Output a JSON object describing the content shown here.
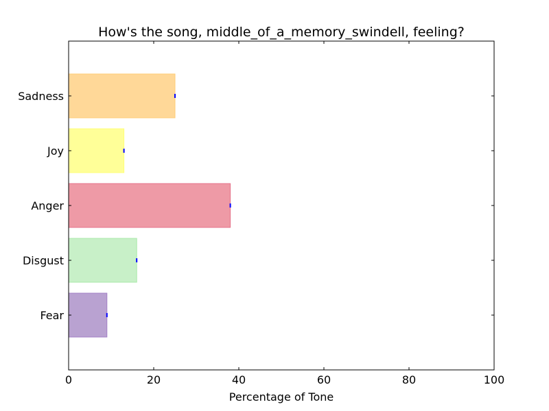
{
  "chart_data": {
    "type": "bar",
    "orientation": "horizontal",
    "title": "How's the song, middle_of_a_memory_swindell, feeling?",
    "xlabel": "Percentage of Tone",
    "ylabel": "",
    "xlim": [
      0,
      100
    ],
    "xticks": [
      0,
      20,
      40,
      60,
      80,
      100
    ],
    "grid": false,
    "legend": "none",
    "categories": [
      "Sadness",
      "Joy",
      "Anger",
      "Disgust",
      "Fear"
    ],
    "values": [
      25,
      13,
      38,
      16,
      9
    ],
    "bar_colors": [
      "#ffd898",
      "#ffff98",
      "#ee9aa6",
      "#c8f0c8",
      "#b9a2d1"
    ],
    "bar_edge_colors": [
      "#ffcc77",
      "#ffff77",
      "#e5728a",
      "#a8e8a8",
      "#a27fc6"
    ],
    "error_marker_color": "#0000ff"
  }
}
